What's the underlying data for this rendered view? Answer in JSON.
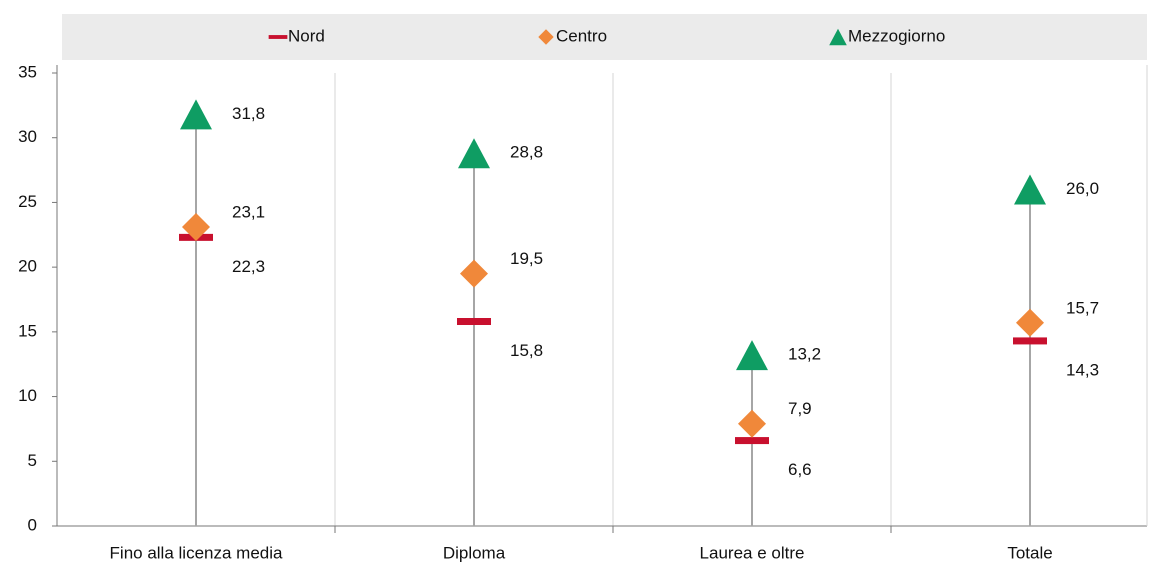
{
  "chart_data": {
    "type": "dot",
    "categories": [
      "Fino alla licenza media",
      "Diploma",
      "Laurea e oltre",
      "Totale"
    ],
    "series": [
      {
        "name": "Nord",
        "color": "#c8102e",
        "marker": "dash",
        "values": [
          22.3,
          15.8,
          6.6,
          14.3
        ],
        "value_labels": [
          "22,3",
          "15,8",
          "6,6",
          "14,3"
        ]
      },
      {
        "name": "Centro",
        "color": "#f0883a",
        "marker": "diamond",
        "values": [
          23.1,
          19.5,
          7.9,
          15.7
        ],
        "value_labels": [
          "23,1",
          "19,5",
          "7,9",
          "15,7"
        ]
      },
      {
        "name": "Mezzogiorno",
        "color": "#0f9d63",
        "marker": "triangle",
        "values": [
          31.8,
          28.8,
          13.2,
          26.0
        ],
        "value_labels": [
          "31,8",
          "28,8",
          "13,2",
          "26,0"
        ]
      }
    ],
    "ylim": [
      0,
      35
    ],
    "yticks": [
      0,
      5,
      10,
      15,
      20,
      25,
      30,
      35
    ],
    "legend": "top"
  }
}
